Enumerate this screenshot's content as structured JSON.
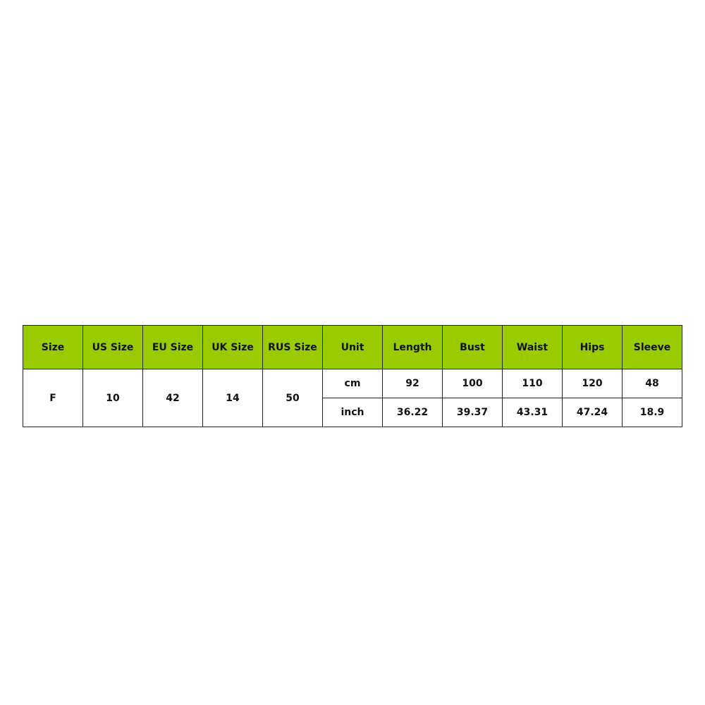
{
  "colors": {
    "header_bg": "#99cc00",
    "border": "#222222"
  },
  "table": {
    "headers": [
      "Size",
      "US Size",
      "EU Size",
      "UK Size",
      "RUS Size",
      "Unit",
      "Length",
      "Bust",
      "Waist",
      "Hips",
      "Sleeve"
    ],
    "size": "F",
    "us": "10",
    "eu": "42",
    "uk": "14",
    "rus": "50",
    "rows": [
      {
        "unit": "cm",
        "values": [
          "92",
          "100",
          "110",
          "120",
          "48"
        ]
      },
      {
        "unit": "inch",
        "values": [
          "36.22",
          "39.37",
          "43.31",
          "47.24",
          "18.9"
        ]
      }
    ]
  }
}
